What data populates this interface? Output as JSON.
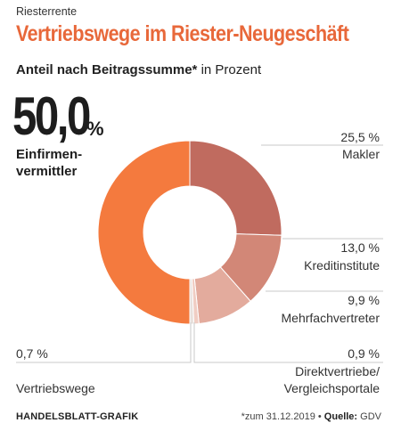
{
  "kicker": "Riesterrente",
  "headline": "Vertriebswege im Riester-Neugeschäft",
  "subtitle_bold": "Anteil nach Beitragssumme*",
  "subtitle_rest": " in Prozent",
  "highlight": {
    "value": "50,0",
    "unit": "%",
    "label_line1": "Einfirmen-",
    "label_line2": "vermittler"
  },
  "footer": {
    "credit": "HANDELSBLATT-GRAFIK",
    "note": "*zum 31.12.2019 • ",
    "source_label": "Quelle:",
    "source": " GDV"
  },
  "colors": {
    "headline": "#e8683a",
    "Einfirmenvermittler": "#f47a3e",
    "Makler": "#c06b5f",
    "Kreditinstitute": "#d28777",
    "Mehrfachvertreter": "#e3ab9d",
    "Direktvertriebe": "#f0cdc3",
    "Vertriebswege": "#e8e0dc"
  },
  "chart_data": {
    "type": "pie",
    "variant": "donut",
    "start_angle_deg": 0,
    "direction": "clockwise",
    "title": "Vertriebswege im Riester-Neugeschäft",
    "subtitle": "Anteil nach Beitragssumme* in Prozent",
    "slices": [
      {
        "label": "Makler",
        "value": 25.5,
        "value_label": "25,5 %"
      },
      {
        "label": "Kreditinstitute",
        "value": 13.0,
        "value_label": "13,0 %"
      },
      {
        "label": "Mehrfachvertreter",
        "value": 9.9,
        "value_label": "9,9 %"
      },
      {
        "label": "Direktvertriebe/ Vergleichsportale",
        "label_line1": "Direktvertriebe/",
        "label_line2": "Vergleichsportale",
        "value": 0.9,
        "value_label": "0,9 %"
      },
      {
        "label": "Vertriebswege",
        "value": 0.7,
        "value_label": "0,7 %"
      },
      {
        "label": "Einfirmenvermittler",
        "value": 50.0,
        "value_label": "50,0 %"
      }
    ]
  }
}
